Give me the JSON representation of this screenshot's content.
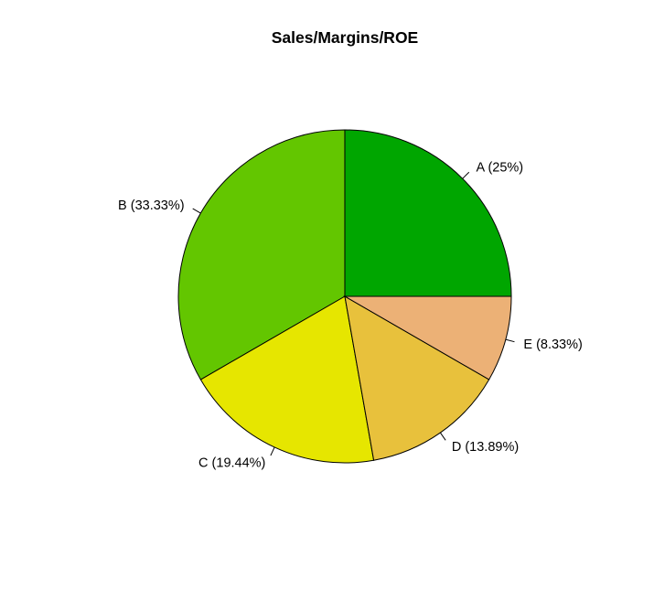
{
  "chart_data": {
    "type": "pie",
    "title": "Sales/Margins/ROE",
    "start": "right-horizontal",
    "direction": "counter-clockwise",
    "slices": [
      {
        "category": "A",
        "label": "A (25%)",
        "percent": 25.0,
        "color": "#00A600"
      },
      {
        "category": "B",
        "label": "B (33.33%)",
        "percent": 33.33,
        "color": "#63C600"
      },
      {
        "category": "C",
        "label": "C (19.44%)",
        "percent": 19.44,
        "color": "#E6E600"
      },
      {
        "category": "D",
        "label": "D (13.89%)",
        "percent": 13.89,
        "color": "#E8C13C"
      },
      {
        "category": "E",
        "label": "E (8.33%)",
        "percent": 8.33,
        "color": "#ECB176"
      }
    ]
  }
}
